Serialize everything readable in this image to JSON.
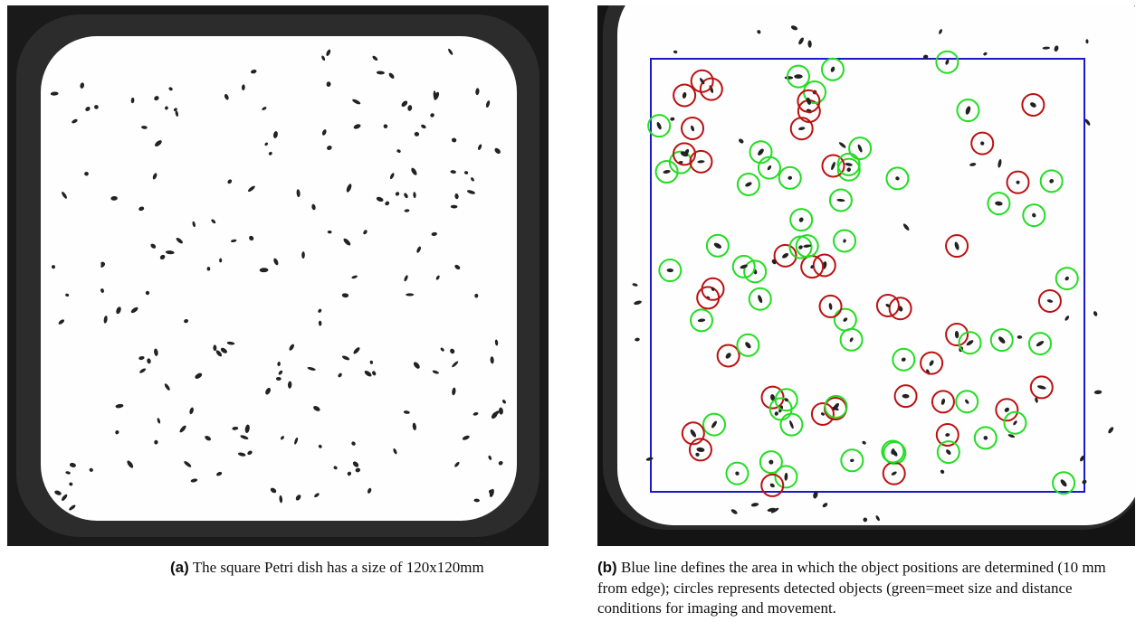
{
  "figure": {
    "panels": [
      {
        "label": "(a)",
        "caption": "The square Petri dish has a size of 120x120mm"
      },
      {
        "label": "(b)",
        "caption": "Blue line defines the area in which the object positions are determined (10 mm from edge); circles represents detected objects (green=meet size and distance conditions for imaging and movement."
      }
    ]
  }
}
